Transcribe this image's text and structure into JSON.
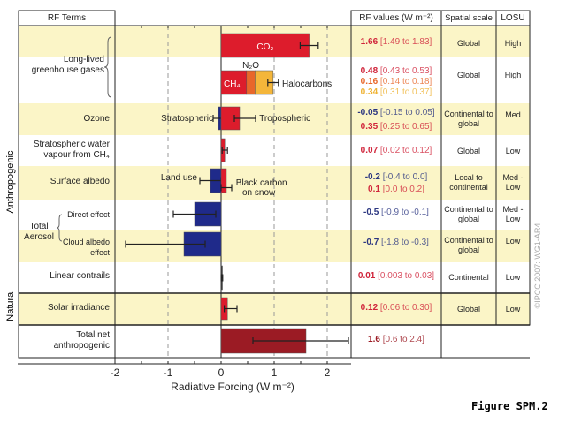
{
  "figure_label": "Figure SPM.2",
  "copyright": "©IPCC 2007: WG1-AR4",
  "headers": {
    "terms": "RF Terms",
    "values": "RF values (W m⁻²)",
    "scale": "Spatial scale",
    "losu": "LOSU"
  },
  "groups": {
    "anthropogenic": "Anthropogenic",
    "natural": "Natural"
  },
  "colors": {
    "positive": "#dd1c2c",
    "negative": "#1f2a8a",
    "n2o": "#e8672a",
    "halocarbons": "#f4b63a",
    "total": "#9b1b24",
    "shade": "#fbf5c7"
  },
  "rows": [
    {
      "term": "Long-lived greenhouse gases",
      "scale": "Global",
      "losu": "High"
    },
    {
      "term": "Ozone",
      "scale": "Continental to global",
      "losu": "Med"
    },
    {
      "term": "Stratospheric water vapour from CH₄",
      "scale": "Global",
      "losu": "Low"
    },
    {
      "term": "Surface albedo",
      "scale": "Local to continental",
      "losu": "Med - Low"
    },
    {
      "term": "Direct effect",
      "scale": "Continental to global",
      "losu": "Med - Low"
    },
    {
      "term": "Cloud albedo effect",
      "scale": "Continental to global",
      "losu": "Low"
    },
    {
      "term": "Linear contrails",
      "scale": "Continental",
      "losu": "Low"
    },
    {
      "term": "Solar irradiance",
      "scale": "Global",
      "losu": "Low"
    },
    {
      "term": "Total net anthropogenic"
    }
  ],
  "aerosol_label": "Total Aerosol",
  "rf_values": [
    {
      "v": "1.66",
      "r": "[1.49 to 1.83]",
      "color": "#d0243a"
    },
    {
      "v": "0.48",
      "r": "[0.43 to 0.53]",
      "color": "#d0243a"
    },
    {
      "v": "0.16",
      "r": "[0.14 to 0.18]",
      "color": "#e8672a"
    },
    {
      "v": "0.34",
      "r": "[0.31 to 0.37]",
      "color": "#eeb232"
    },
    {
      "v": "-0.05",
      "r": "[-0.15 to 0.05]",
      "color": "#2a3580"
    },
    {
      "v": "0.35",
      "r": "[0.25 to 0.65]",
      "color": "#d0243a"
    },
    {
      "v": "0.07",
      "r": "[0.02 to 0.12]",
      "color": "#d0243a"
    },
    {
      "v": "-0.2",
      "r": "[-0.4 to 0.0]",
      "color": "#2a3580"
    },
    {
      "v": "0.1",
      "r": "[0.0 to 0.2]",
      "color": "#d0243a"
    },
    {
      "v": "-0.5",
      "r": "[-0.9 to -0.1]",
      "color": "#2a3580"
    },
    {
      "v": "-0.7",
      "r": "[-1.8 to -0.3]",
      "color": "#2a3580"
    },
    {
      "v": "0.01",
      "r": "[0.003 to 0.03]",
      "color": "#d0243a"
    },
    {
      "v": "0.12",
      "r": "[0.06 to 0.30]",
      "color": "#d0243a"
    },
    {
      "v": "1.6",
      "r": "[0.6 to 2.4]",
      "color": "#9b1b24"
    }
  ],
  "chart_data": {
    "type": "bar",
    "orientation": "horizontal",
    "xlabel": "Radiative Forcing  (W m⁻²)",
    "xlim": [
      -2,
      2.45
    ],
    "xticks": [
      "-2",
      "-1",
      "0",
      "1",
      "2"
    ],
    "grid": "dashed vertical at -1, 1, 2",
    "bars": [
      {
        "name": "CO₂",
        "row": 0,
        "start": 0,
        "value": 1.66,
        "lo": 1.49,
        "hi": 1.83,
        "color": "#dd1c2c"
      },
      {
        "name": "CH₄",
        "row": 1,
        "start": 0,
        "value": 0.48,
        "color": "#dd1c2c"
      },
      {
        "name": "N₂O",
        "row": 1,
        "start": 0.48,
        "value": 0.16,
        "color": "#e8672a"
      },
      {
        "name": "Halocarbons",
        "row": 1,
        "start": 0.64,
        "value": 0.34,
        "lo": 0.88,
        "hi": 1.08,
        "color": "#f4b63a"
      },
      {
        "name": "Stratospheric",
        "row": 2,
        "start": 0,
        "value": -0.05,
        "lo": -0.15,
        "hi": 0.05,
        "color": "#1f2a8a"
      },
      {
        "name": "Tropospheric",
        "row": 2,
        "start": 0,
        "value": 0.35,
        "lo": 0.25,
        "hi": 0.65,
        "color": "#dd1c2c"
      },
      {
        "name": "",
        "row": 3,
        "start": 0,
        "value": 0.07,
        "lo": 0.02,
        "hi": 0.12,
        "color": "#dd1c2c"
      },
      {
        "name": "Land use",
        "row": 4,
        "start": 0,
        "value": -0.2,
        "lo": -0.4,
        "hi": 0.0,
        "color": "#1f2a8a"
      },
      {
        "name": "Black carbon on snow",
        "row": 4,
        "start": 0,
        "value": 0.1,
        "lo": 0.0,
        "hi": 0.2,
        "color": "#dd1c2c"
      },
      {
        "name": "",
        "row": 5,
        "start": 0,
        "value": -0.5,
        "lo": -0.9,
        "hi": -0.1,
        "color": "#1f2a8a"
      },
      {
        "name": "",
        "row": 6,
        "start": 0,
        "value": -0.7,
        "lo": -1.8,
        "hi": -0.3,
        "color": "#1f2a8a"
      },
      {
        "name": "",
        "row": 7,
        "start": 0,
        "value": 0.01,
        "lo": 0.003,
        "hi": 0.03,
        "color": "#333333"
      },
      {
        "name": "",
        "row": 8,
        "start": 0,
        "value": 0.12,
        "lo": 0.06,
        "hi": 0.3,
        "color": "#dd1c2c"
      },
      {
        "name": "",
        "row": 9,
        "start": 0,
        "value": 1.6,
        "lo": 0.6,
        "hi": 2.4,
        "color": "#9b1b24"
      }
    ]
  }
}
